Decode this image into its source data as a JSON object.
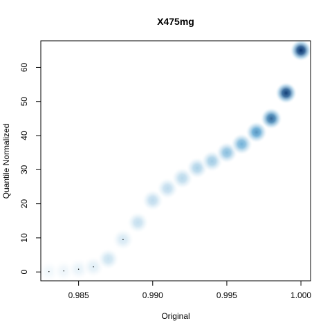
{
  "chart_data": {
    "type": "scatter",
    "style": "smoothed-density",
    "title": "X475mg",
    "xlabel": "Original",
    "ylabel": "Quantile Normalized",
    "xlim": [
      0.98245,
      1.00065
    ],
    "ylim": [
      -2.6,
      67.8
    ],
    "xticks": [
      0.985,
      0.99,
      0.995,
      1.0
    ],
    "xtick_labels": [
      "0.985",
      "0.990",
      "0.995",
      "1.000"
    ],
    "yticks": [
      0,
      10,
      20,
      30,
      40,
      50,
      60
    ],
    "ytick_labels": [
      "0",
      "10",
      "20",
      "30",
      "40",
      "50",
      "60"
    ],
    "grid": false,
    "colors": {
      "low": "#ffffff",
      "mid": "#6baed6",
      "high": "#08306b"
    },
    "points": [
      {
        "x": 0.983,
        "y": 0.1,
        "d": 0.05
      },
      {
        "x": 0.984,
        "y": 0.3,
        "d": 0.06
      },
      {
        "x": 0.985,
        "y": 0.8,
        "d": 0.08
      },
      {
        "x": 0.986,
        "y": 1.5,
        "d": 0.1
      },
      {
        "x": 0.987,
        "y": 3.8,
        "d": 0.18
      },
      {
        "x": 0.988,
        "y": 9.5,
        "d": 0.14
      },
      {
        "x": 0.989,
        "y": 14.5,
        "d": 0.2
      },
      {
        "x": 0.99,
        "y": 21.0,
        "d": 0.22
      },
      {
        "x": 0.991,
        "y": 24.5,
        "d": 0.22
      },
      {
        "x": 0.992,
        "y": 27.5,
        "d": 0.24
      },
      {
        "x": 0.993,
        "y": 30.5,
        "d": 0.28
      },
      {
        "x": 0.994,
        "y": 32.5,
        "d": 0.32
      },
      {
        "x": 0.995,
        "y": 35.0,
        "d": 0.4
      },
      {
        "x": 0.996,
        "y": 37.5,
        "d": 0.48
      },
      {
        "x": 0.997,
        "y": 41.0,
        "d": 0.6
      },
      {
        "x": 0.998,
        "y": 45.0,
        "d": 0.78
      },
      {
        "x": 0.999,
        "y": 52.5,
        "d": 0.95
      },
      {
        "x": 1.0,
        "y": 65.0,
        "d": 1.0
      }
    ]
  }
}
